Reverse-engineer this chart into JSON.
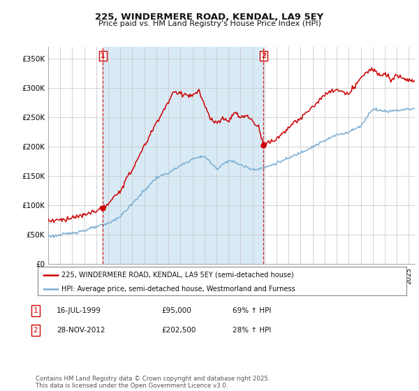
{
  "title_line1": "225, WINDERMERE ROAD, KENDAL, LA9 5EY",
  "title_line2": "Price paid vs. HM Land Registry's House Price Index (HPI)",
  "ylim": [
    0,
    370000
  ],
  "yticks": [
    0,
    50000,
    100000,
    150000,
    200000,
    250000,
    300000,
    350000
  ],
  "ytick_labels": [
    "£0",
    "£50K",
    "£100K",
    "£150K",
    "£200K",
    "£250K",
    "£300K",
    "£350K"
  ],
  "red_color": "#cc0000",
  "blue_color": "#7aadd4",
  "shade_color": "#d8eaf5",
  "sale1_x": 1999.55,
  "sale1_y": 95000,
  "sale2_x": 2012.92,
  "sale2_y": 202500,
  "legend_red": "225, WINDERMERE ROAD, KENDAL, LA9 5EY (semi-detached house)",
  "legend_blue": "HPI: Average price, semi-detached house, Westmorland and Furness",
  "ann1_label": "1",
  "ann1_date": "16-JUL-1999",
  "ann1_price": "£95,000",
  "ann1_hpi": "69% ↑ HPI",
  "ann2_label": "2",
  "ann2_date": "28-NOV-2012",
  "ann2_price": "£202,500",
  "ann2_hpi": "28% ↑ HPI",
  "footer": "Contains HM Land Registry data © Crown copyright and database right 2025.\nThis data is licensed under the Open Government Licence v3.0.",
  "bg_color": "#ffffff",
  "grid_color": "#cccccc",
  "xlim_left": 1995.0,
  "xlim_right": 2025.5
}
